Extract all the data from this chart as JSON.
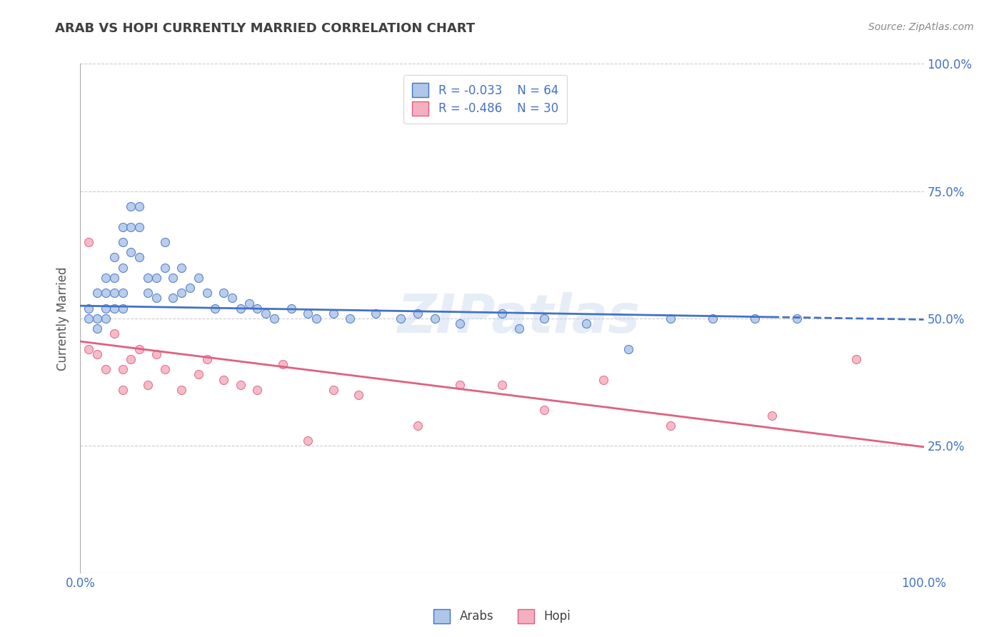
{
  "title": "ARAB VS HOPI CURRENTLY MARRIED CORRELATION CHART",
  "source": "Source: ZipAtlas.com",
  "ylabel": "Currently Married",
  "xlim": [
    0.0,
    1.0
  ],
  "ylim": [
    0.0,
    1.0
  ],
  "ytick_positions": [
    0.25,
    0.5,
    0.75,
    1.0
  ],
  "ytick_labels": [
    "25.0%",
    "50.0%",
    "75.0%",
    "100.0%"
  ],
  "watermark": "ZIPatlas",
  "legend_arab_R": "R = -0.033",
  "legend_arab_N": "N = 64",
  "legend_hopi_R": "R = -0.486",
  "legend_hopi_N": "N = 30",
  "arab_color": "#aec6e8",
  "hopi_color": "#f4afc0",
  "arab_line_color": "#4472c4",
  "hopi_line_color": "#e06080",
  "title_color": "#404040",
  "axis_label_color": "#555555",
  "tick_color": "#4472c4",
  "grid_color": "#cccccc",
  "background_color": "#ffffff",
  "arab_x": [
    0.01,
    0.01,
    0.02,
    0.02,
    0.02,
    0.03,
    0.03,
    0.03,
    0.03,
    0.04,
    0.04,
    0.04,
    0.04,
    0.05,
    0.05,
    0.05,
    0.05,
    0.05,
    0.06,
    0.06,
    0.06,
    0.07,
    0.07,
    0.07,
    0.08,
    0.08,
    0.09,
    0.09,
    0.1,
    0.1,
    0.11,
    0.11,
    0.12,
    0.12,
    0.13,
    0.14,
    0.15,
    0.16,
    0.17,
    0.18,
    0.19,
    0.2,
    0.21,
    0.22,
    0.23,
    0.25,
    0.27,
    0.28,
    0.3,
    0.32,
    0.35,
    0.38,
    0.4,
    0.42,
    0.45,
    0.5,
    0.52,
    0.55,
    0.6,
    0.65,
    0.7,
    0.75,
    0.8,
    0.85
  ],
  "arab_y": [
    0.52,
    0.5,
    0.55,
    0.5,
    0.48,
    0.58,
    0.55,
    0.52,
    0.5,
    0.62,
    0.58,
    0.55,
    0.52,
    0.68,
    0.65,
    0.6,
    0.55,
    0.52,
    0.72,
    0.68,
    0.63,
    0.72,
    0.68,
    0.62,
    0.58,
    0.55,
    0.58,
    0.54,
    0.65,
    0.6,
    0.58,
    0.54,
    0.6,
    0.55,
    0.56,
    0.58,
    0.55,
    0.52,
    0.55,
    0.54,
    0.52,
    0.53,
    0.52,
    0.51,
    0.5,
    0.52,
    0.51,
    0.5,
    0.51,
    0.5,
    0.51,
    0.5,
    0.51,
    0.5,
    0.49,
    0.51,
    0.48,
    0.5,
    0.49,
    0.44,
    0.5,
    0.5,
    0.5,
    0.5
  ],
  "hopi_x": [
    0.01,
    0.01,
    0.02,
    0.03,
    0.04,
    0.05,
    0.05,
    0.06,
    0.07,
    0.08,
    0.09,
    0.1,
    0.12,
    0.14,
    0.15,
    0.17,
    0.19,
    0.21,
    0.24,
    0.27,
    0.3,
    0.33,
    0.4,
    0.45,
    0.5,
    0.55,
    0.62,
    0.7,
    0.82,
    0.92
  ],
  "hopi_y": [
    0.44,
    0.65,
    0.43,
    0.4,
    0.47,
    0.4,
    0.36,
    0.42,
    0.44,
    0.37,
    0.43,
    0.4,
    0.36,
    0.39,
    0.42,
    0.38,
    0.37,
    0.36,
    0.41,
    0.26,
    0.36,
    0.35,
    0.29,
    0.37,
    0.37,
    0.32,
    0.38,
    0.29,
    0.31,
    0.42
  ],
  "arab_line_start_y": 0.525,
  "arab_line_end_y": 0.498,
  "hopi_line_start_y": 0.455,
  "hopi_line_end_y": 0.248,
  "marker_size": 75
}
